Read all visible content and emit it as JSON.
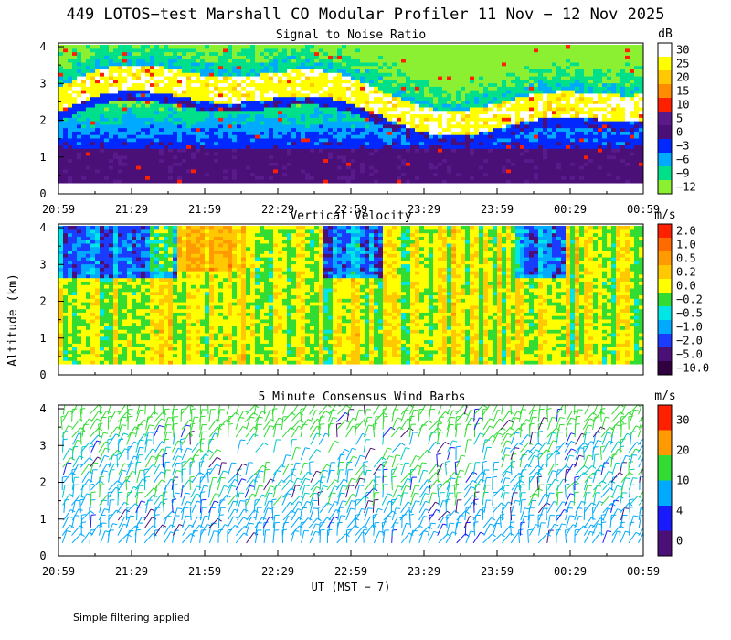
{
  "figure": {
    "title": "449 LOTOS−test Marshall CO Modular Profiler 11 Nov − 12 Nov 2025",
    "ylabel": "Altitude (km)",
    "xlabel": "UT  (MST − 7)",
    "footnote": "Simple filtering applied"
  },
  "chart_data": [
    {
      "type": "heatmap",
      "name": "snr",
      "title": "Signal to Noise Ratio",
      "unit": "dB",
      "x_ticks": [
        "20:59",
        "21:29",
        "21:59",
        "22:29",
        "22:59",
        "23:29",
        "23:59",
        "00:29",
        "00:59"
      ],
      "y_ticks": [
        "0",
        "1",
        "2",
        "3",
        "4"
      ],
      "ylim": [
        0,
        4.1
      ],
      "colorbar": {
        "labels": [
          "30",
          "25",
          "20",
          "15",
          "10",
          "5",
          "0",
          "−3",
          "−6",
          "−9",
          "−12"
        ],
        "colors": [
          "#ffffff",
          "#ffff00",
          "#ffc800",
          "#ff8c00",
          "#ff2000",
          "#5a1a8c",
          "#4a1078",
          "#0028ff",
          "#00aaff",
          "#00e08a",
          "#8cf032"
        ]
      }
    },
    {
      "type": "heatmap",
      "name": "vertical_velocity",
      "title": "Vertical Velocity",
      "unit": "m/s",
      "x_ticks": [
        "",
        "",
        "",
        "",
        "",
        "",
        "",
        "",
        ""
      ],
      "y_ticks": [
        "0",
        "1",
        "2",
        "3",
        "4"
      ],
      "ylim": [
        0,
        4.1
      ],
      "colorbar": {
        "labels": [
          "2.0",
          "1.0",
          "0.5",
          "0.2",
          "0.0",
          "−0.2",
          "−0.5",
          "−1.0",
          "−2.0",
          "−5.0",
          "−10.0"
        ],
        "colors": [
          "#ff2000",
          "#ff6a00",
          "#ff9a00",
          "#ffc800",
          "#ffff00",
          "#32dc32",
          "#00e6e6",
          "#00aaff",
          "#1a3cff",
          "#4a1078",
          "#300040"
        ]
      }
    },
    {
      "type": "scatter",
      "name": "wind_barbs",
      "title": "5 Minute Consensus Wind Barbs",
      "unit": "m/s",
      "x_ticks": [
        "20:59",
        "21:29",
        "21:59",
        "22:29",
        "22:59",
        "23:29",
        "23:59",
        "00:29",
        "00:59"
      ],
      "y_ticks": [
        "0",
        "1",
        "2",
        "3",
        "4"
      ],
      "ylim": [
        0,
        4.1
      ],
      "colorbar": {
        "labels": [
          "30",
          "20",
          "10",
          "4",
          "0"
        ],
        "colors": [
          "#ff2000",
          "#ff9a00",
          "#32dc32",
          "#00aaff",
          "#1a1aff",
          "#4a1078"
        ]
      }
    }
  ]
}
